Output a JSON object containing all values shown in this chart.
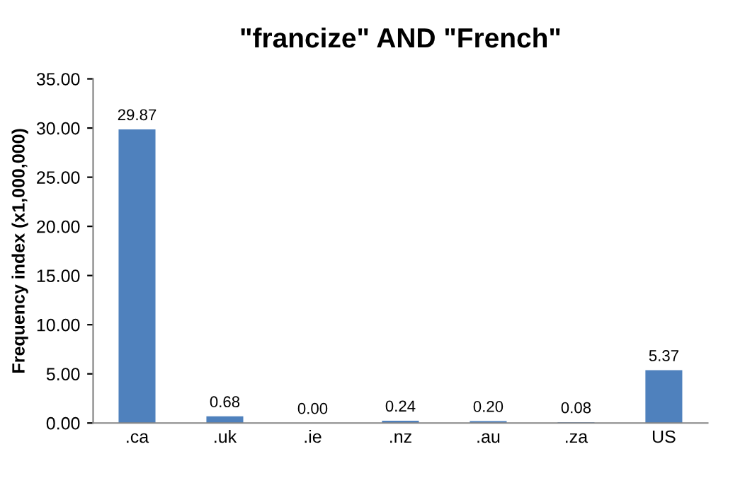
{
  "chart_data": {
    "type": "bar",
    "title": "\"francize\" AND \"French\"",
    "ylabel": "Frequency index (x1,000,000)",
    "categories": [
      ".ca",
      ".uk",
      ".ie",
      ".nz",
      ".au",
      ".za",
      "US"
    ],
    "values": [
      29.87,
      0.68,
      0.0,
      0.24,
      0.2,
      0.08,
      5.37
    ],
    "value_labels": [
      "29.87",
      "0.68",
      "0.00",
      "0.24",
      "0.20",
      "0.08",
      "5.37"
    ],
    "color": "#4f81bd",
    "ylim": [
      0,
      35
    ],
    "yticks": [
      {
        "value": 0,
        "label": "0.00"
      },
      {
        "value": 5,
        "label": "5.00"
      },
      {
        "value": 10,
        "label": "10.00"
      },
      {
        "value": 15,
        "label": "15.00"
      },
      {
        "value": 20,
        "label": "20.00"
      },
      {
        "value": 25,
        "label": "25.00"
      },
      {
        "value": 30,
        "label": "30.00"
      },
      {
        "value": 35,
        "label": "35.00"
      }
    ],
    "grid": false,
    "legend": false
  }
}
